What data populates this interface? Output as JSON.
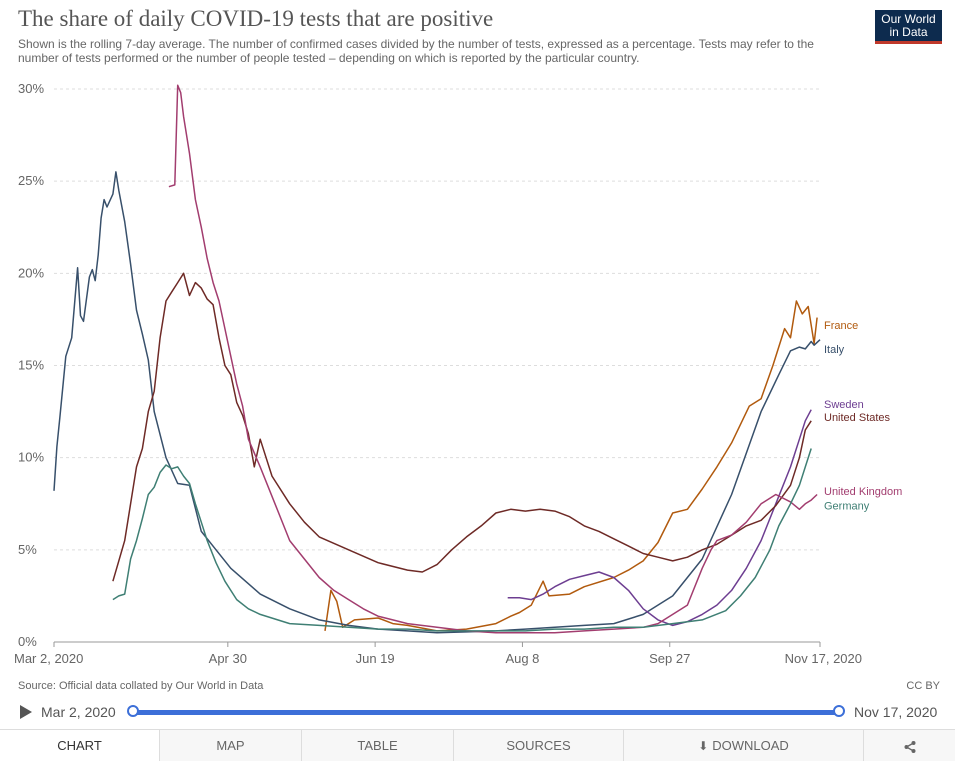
{
  "header": {
    "title": "The share of daily COVID-19 tests that are positive",
    "subtitle": "Shown is the rolling 7-day average. The number of confirmed cases divided by the number of tests, expressed as a percentage. Tests may refer to the number of tests performed or the number of people tested – depending on which is reported by the particular country.",
    "logo_line1": "Our World",
    "logo_line2": "in Data"
  },
  "footer": {
    "source": "Source: Official data collated by Our World in Data",
    "license": "CC BY"
  },
  "timeline": {
    "start_label": "Mar 2, 2020",
    "end_label": "Nov 17, 2020",
    "start_value": 0,
    "end_value": 1
  },
  "tabs": {
    "chart": "CHART",
    "map": "MAP",
    "table": "TABLE",
    "sources": "SOURCES",
    "download": "DOWNLOAD"
  },
  "chart_data": {
    "type": "line",
    "x_unit": "days since Mar 2, 2020",
    "xlim": [
      0,
      260
    ],
    "ylim": [
      0,
      30
    ],
    "y_ticks": [
      0,
      5,
      10,
      15,
      20,
      25,
      30
    ],
    "y_tick_labels": [
      "0%",
      "5%",
      "10%",
      "15%",
      "20%",
      "25%",
      "30%"
    ],
    "x_ticks": [
      0,
      59,
      109,
      159,
      209,
      260
    ],
    "x_tick_labels": [
      "Mar 2, 2020",
      "Apr 30",
      "Jun 19",
      "Aug 8",
      "Sep 27",
      "Nov 17, 2020"
    ],
    "grid": true,
    "series": [
      {
        "name": "France",
        "color": "#b15a0e",
        "label_y": 17.2,
        "points": [
          [
            92,
            0.6
          ],
          [
            94,
            2.8
          ],
          [
            96,
            2.2
          ],
          [
            98,
            0.8
          ],
          [
            102,
            1.2
          ],
          [
            110,
            1.3
          ],
          [
            115,
            1.0
          ],
          [
            120,
            0.9
          ],
          [
            130,
            0.6
          ],
          [
            140,
            0.7
          ],
          [
            150,
            1.0
          ],
          [
            155,
            1.4
          ],
          [
            158,
            1.6
          ],
          [
            162,
            2.0
          ],
          [
            166,
            3.3
          ],
          [
            168,
            2.5
          ],
          [
            175,
            2.6
          ],
          [
            180,
            3.0
          ],
          [
            190,
            3.5
          ],
          [
            195,
            3.9
          ],
          [
            200,
            4.4
          ],
          [
            205,
            5.4
          ],
          [
            210,
            7.0
          ],
          [
            215,
            7.2
          ],
          [
            220,
            8.3
          ],
          [
            225,
            9.5
          ],
          [
            230,
            10.8
          ],
          [
            236,
            12.8
          ],
          [
            240,
            13.2
          ],
          [
            244,
            15.0
          ],
          [
            248,
            17.0
          ],
          [
            250,
            16.5
          ],
          [
            252,
            18.5
          ],
          [
            254,
            17.8
          ],
          [
            256,
            18.2
          ],
          [
            258,
            16.2
          ],
          [
            259,
            17.6
          ]
        ]
      },
      {
        "name": "Italy",
        "color": "#38506b",
        "label_y": 15.9,
        "points": [
          [
            0,
            8.2
          ],
          [
            1,
            10.6
          ],
          [
            2,
            12.2
          ],
          [
            4,
            15.5
          ],
          [
            6,
            16.5
          ],
          [
            8,
            20.3
          ],
          [
            9,
            17.7
          ],
          [
            10,
            17.4
          ],
          [
            12,
            19.8
          ],
          [
            13,
            20.2
          ],
          [
            14,
            19.6
          ],
          [
            15,
            21.0
          ],
          [
            16,
            23.0
          ],
          [
            17,
            24.0
          ],
          [
            18,
            23.6
          ],
          [
            20,
            24.3
          ],
          [
            21,
            25.5
          ],
          [
            22,
            24.5
          ],
          [
            24,
            22.8
          ],
          [
            26,
            20.5
          ],
          [
            28,
            18.0
          ],
          [
            30,
            16.7
          ],
          [
            32,
            15.3
          ],
          [
            34,
            12.5
          ],
          [
            38,
            10.0
          ],
          [
            42,
            8.6
          ],
          [
            46,
            8.5
          ],
          [
            50,
            6.0
          ],
          [
            55,
            5.0
          ],
          [
            60,
            4.0
          ],
          [
            70,
            2.6
          ],
          [
            80,
            1.8
          ],
          [
            90,
            1.2
          ],
          [
            100,
            0.9
          ],
          [
            110,
            0.7
          ],
          [
            120,
            0.6
          ],
          [
            130,
            0.5
          ],
          [
            140,
            0.55
          ],
          [
            150,
            0.6
          ],
          [
            160,
            0.7
          ],
          [
            170,
            0.8
          ],
          [
            180,
            0.9
          ],
          [
            190,
            1.0
          ],
          [
            200,
            1.5
          ],
          [
            210,
            2.5
          ],
          [
            220,
            4.5
          ],
          [
            230,
            8.0
          ],
          [
            240,
            12.5
          ],
          [
            246,
            14.5
          ],
          [
            250,
            15.8
          ],
          [
            253,
            16.0
          ],
          [
            255,
            15.9
          ],
          [
            257,
            16.3
          ],
          [
            258,
            16.1
          ],
          [
            260,
            16.4
          ]
        ]
      },
      {
        "name": "Sweden",
        "color": "#6d3e91",
        "label_y": 12.9,
        "points": [
          [
            154,
            2.4
          ],
          [
            158,
            2.4
          ],
          [
            162,
            2.3
          ],
          [
            166,
            2.6
          ],
          [
            170,
            3.0
          ],
          [
            175,
            3.4
          ],
          [
            180,
            3.6
          ],
          [
            185,
            3.8
          ],
          [
            190,
            3.5
          ],
          [
            195,
            2.8
          ],
          [
            200,
            1.8
          ],
          [
            205,
            1.2
          ],
          [
            210,
            0.9
          ],
          [
            215,
            1.1
          ],
          [
            220,
            1.5
          ],
          [
            225,
            2.0
          ],
          [
            230,
            2.8
          ],
          [
            235,
            4.0
          ],
          [
            240,
            5.5
          ],
          [
            245,
            7.5
          ],
          [
            250,
            9.5
          ],
          [
            253,
            11.0
          ],
          [
            255,
            12.0
          ],
          [
            257,
            12.6
          ]
        ]
      },
      {
        "name": "United States",
        "color": "#6e2a26",
        "label_y": 12.2,
        "points": [
          [
            20,
            3.3
          ],
          [
            22,
            4.4
          ],
          [
            24,
            5.5
          ],
          [
            26,
            7.5
          ],
          [
            28,
            9.5
          ],
          [
            30,
            10.5
          ],
          [
            32,
            12.5
          ],
          [
            34,
            13.6
          ],
          [
            36,
            16.5
          ],
          [
            38,
            18.5
          ],
          [
            40,
            19.0
          ],
          [
            42,
            19.5
          ],
          [
            44,
            20.0
          ],
          [
            46,
            18.8
          ],
          [
            48,
            19.5
          ],
          [
            50,
            19.2
          ],
          [
            52,
            18.6
          ],
          [
            54,
            18.3
          ],
          [
            56,
            16.5
          ],
          [
            58,
            15.0
          ],
          [
            60,
            14.5
          ],
          [
            62,
            13.0
          ],
          [
            64,
            12.3
          ],
          [
            66,
            11.3
          ],
          [
            68,
            9.5
          ],
          [
            70,
            11.0
          ],
          [
            72,
            10.0
          ],
          [
            74,
            9.0
          ],
          [
            80,
            7.5
          ],
          [
            85,
            6.5
          ],
          [
            90,
            5.7
          ],
          [
            100,
            5.0
          ],
          [
            110,
            4.3
          ],
          [
            120,
            3.9
          ],
          [
            125,
            3.8
          ],
          [
            130,
            4.2
          ],
          [
            135,
            5.0
          ],
          [
            140,
            5.7
          ],
          [
            145,
            6.3
          ],
          [
            150,
            7.0
          ],
          [
            155,
            7.2
          ],
          [
            160,
            7.1
          ],
          [
            165,
            7.2
          ],
          [
            170,
            7.1
          ],
          [
            175,
            6.8
          ],
          [
            180,
            6.3
          ],
          [
            185,
            6.0
          ],
          [
            190,
            5.6
          ],
          [
            195,
            5.2
          ],
          [
            200,
            4.8
          ],
          [
            205,
            4.6
          ],
          [
            210,
            4.4
          ],
          [
            215,
            4.6
          ],
          [
            220,
            5.0
          ],
          [
            225,
            5.3
          ],
          [
            230,
            5.8
          ],
          [
            235,
            6.3
          ],
          [
            240,
            6.6
          ],
          [
            245,
            7.4
          ],
          [
            250,
            8.5
          ],
          [
            253,
            10.0
          ],
          [
            255,
            11.5
          ],
          [
            257,
            12.0
          ]
        ]
      },
      {
        "name": "United Kingdom",
        "color": "#a23d6f",
        "label_y": 8.2,
        "points": [
          [
            39,
            24.7
          ],
          [
            41,
            24.8
          ],
          [
            42,
            30.2
          ],
          [
            43,
            29.8
          ],
          [
            44,
            28.5
          ],
          [
            46,
            26.5
          ],
          [
            48,
            24.0
          ],
          [
            50,
            22.5
          ],
          [
            52,
            20.8
          ],
          [
            54,
            19.5
          ],
          [
            56,
            18.5
          ],
          [
            58,
            17.0
          ],
          [
            60,
            15.5
          ],
          [
            62,
            14.0
          ],
          [
            64,
            12.8
          ],
          [
            66,
            11.0
          ],
          [
            70,
            9.5
          ],
          [
            75,
            7.5
          ],
          [
            80,
            5.5
          ],
          [
            85,
            4.5
          ],
          [
            90,
            3.5
          ],
          [
            95,
            2.8
          ],
          [
            100,
            2.3
          ],
          [
            105,
            1.8
          ],
          [
            110,
            1.4
          ],
          [
            115,
            1.2
          ],
          [
            120,
            1.0
          ],
          [
            130,
            0.8
          ],
          [
            140,
            0.6
          ],
          [
            150,
            0.5
          ],
          [
            160,
            0.5
          ],
          [
            170,
            0.5
          ],
          [
            180,
            0.6
          ],
          [
            190,
            0.7
          ],
          [
            200,
            0.8
          ],
          [
            205,
            1.0
          ],
          [
            210,
            1.5
          ],
          [
            215,
            2.0
          ],
          [
            220,
            4.0
          ],
          [
            223,
            5.0
          ],
          [
            225,
            5.5
          ],
          [
            230,
            5.8
          ],
          [
            235,
            6.5
          ],
          [
            240,
            7.5
          ],
          [
            245,
            8.0
          ],
          [
            250,
            7.6
          ],
          [
            253,
            7.2
          ],
          [
            255,
            7.5
          ],
          [
            257,
            7.7
          ],
          [
            259,
            8.0
          ]
        ]
      },
      {
        "name": "Germany",
        "color": "#3f7f74",
        "label_y": 7.4,
        "points": [
          [
            20,
            2.3
          ],
          [
            22,
            2.5
          ],
          [
            24,
            2.6
          ],
          [
            26,
            4.5
          ],
          [
            28,
            5.5
          ],
          [
            30,
            6.7
          ],
          [
            32,
            8.0
          ],
          [
            34,
            8.4
          ],
          [
            36,
            9.2
          ],
          [
            38,
            9.6
          ],
          [
            40,
            9.4
          ],
          [
            42,
            9.5
          ],
          [
            44,
            9.0
          ],
          [
            46,
            8.6
          ],
          [
            48,
            7.5
          ],
          [
            50,
            6.5
          ],
          [
            52,
            5.5
          ],
          [
            55,
            4.3
          ],
          [
            58,
            3.3
          ],
          [
            62,
            2.3
          ],
          [
            66,
            1.8
          ],
          [
            70,
            1.5
          ],
          [
            80,
            1.0
          ],
          [
            90,
            0.9
          ],
          [
            100,
            0.8
          ],
          [
            110,
            0.7
          ],
          [
            120,
            0.7
          ],
          [
            130,
            0.6
          ],
          [
            140,
            0.6
          ],
          [
            150,
            0.6
          ],
          [
            160,
            0.6
          ],
          [
            170,
            0.7
          ],
          [
            180,
            0.7
          ],
          [
            190,
            0.8
          ],
          [
            200,
            0.8
          ],
          [
            210,
            1.0
          ],
          [
            220,
            1.2
          ],
          [
            228,
            1.7
          ],
          [
            233,
            2.5
          ],
          [
            238,
            3.5
          ],
          [
            243,
            5.0
          ],
          [
            246,
            6.3
          ],
          [
            250,
            7.5
          ],
          [
            253,
            8.5
          ],
          [
            255,
            9.5
          ],
          [
            257,
            10.5
          ]
        ]
      }
    ]
  }
}
